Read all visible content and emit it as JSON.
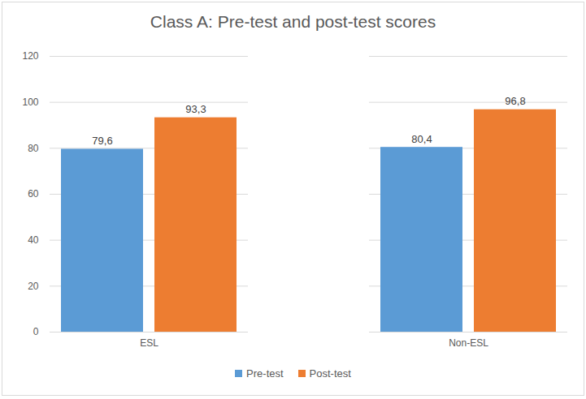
{
  "chart_data": {
    "type": "bar",
    "title": "Class A: Pre-test and post-test scores",
    "categories": [
      "ESL",
      "Non-ESL"
    ],
    "series": [
      {
        "name": "Pre-test",
        "color": "#5b9bd5",
        "values": [
          79.6,
          80.4
        ],
        "value_labels": [
          "79,6",
          "80,4"
        ]
      },
      {
        "name": "Post-test",
        "color": "#ed7d31",
        "values": [
          93.3,
          96.8
        ],
        "value_labels": [
          "93,3",
          "96,8"
        ]
      }
    ],
    "ylim": [
      0,
      120
    ],
    "yticks": [
      0,
      20,
      40,
      60,
      80,
      100,
      120
    ],
    "grid": true,
    "data_labels": true,
    "legend": "bottom"
  }
}
